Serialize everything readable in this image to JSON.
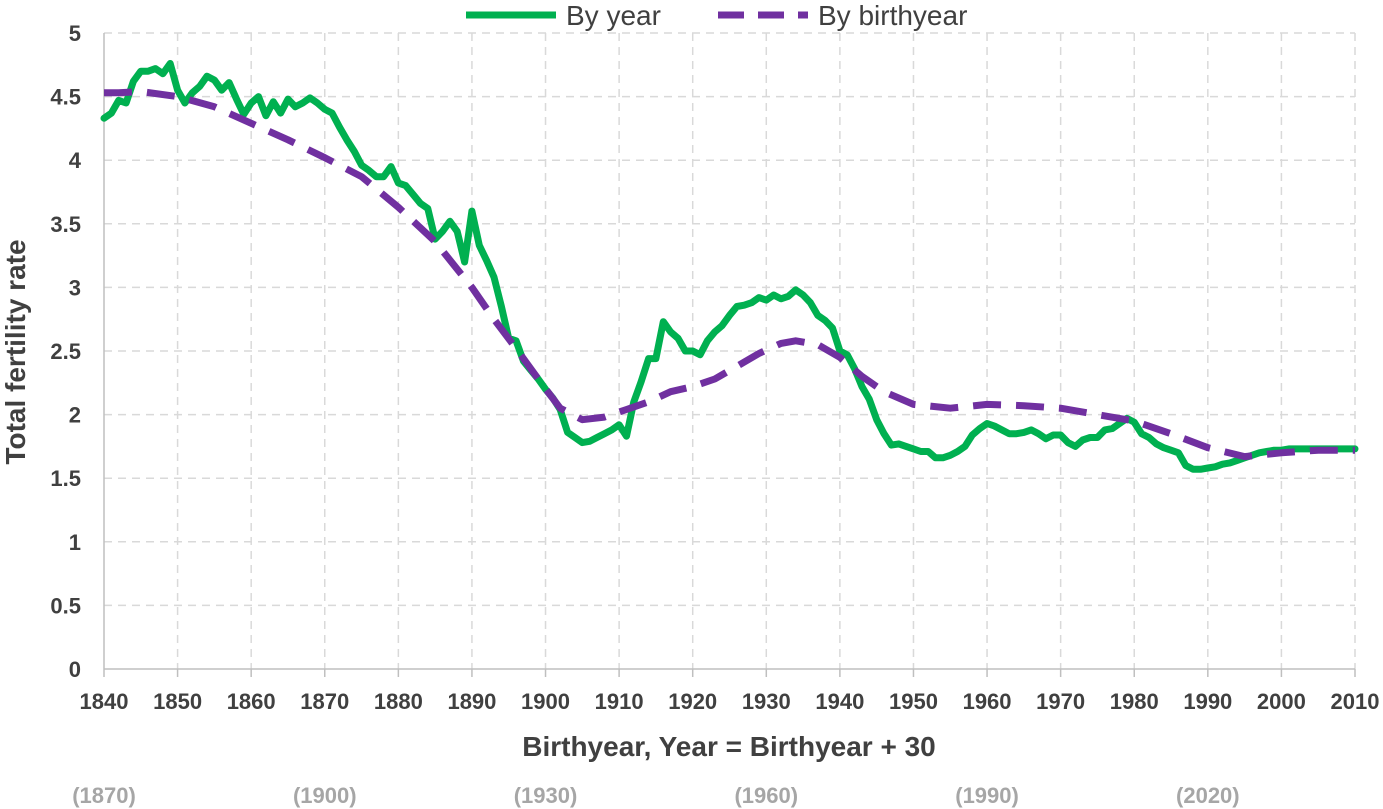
{
  "chart_data": {
    "type": "line",
    "xlabel": "Birthyear, Year = Birthyear + 30",
    "ylabel": "Total fertility rate",
    "xlim": [
      1840,
      2010
    ],
    "ylim": [
      0,
      5
    ],
    "x_ticks": [
      "1840",
      "1850",
      "1860",
      "1870",
      "1880",
      "1890",
      "1900",
      "1910",
      "1920",
      "1930",
      "1940",
      "1950",
      "1960",
      "1970",
      "1980",
      "1990",
      "2000",
      "2010"
    ],
    "y_ticks": [
      "0",
      "0.5",
      "1",
      "1.5",
      "2",
      "2.5",
      "3",
      "3.5",
      "4",
      "4.5",
      "5"
    ],
    "secondary_x_ticks": [
      {
        "x": 1840,
        "label": "(1870)"
      },
      {
        "x": 1870,
        "label": "(1900)"
      },
      {
        "x": 1900,
        "label": "(1930)"
      },
      {
        "x": 1930,
        "label": "(1960)"
      },
      {
        "x": 1960,
        "label": "(1990)"
      },
      {
        "x": 1990,
        "label": "(2020)"
      }
    ],
    "grid": "dashed vertical and horizontal",
    "legend": "top-center",
    "series": [
      {
        "name": "By year",
        "color": "#00b050",
        "style": "solid",
        "x": [
          1840,
          1841,
          1842,
          1843,
          1844,
          1845,
          1846,
          1847,
          1848,
          1849,
          1850,
          1851,
          1852,
          1853,
          1854,
          1855,
          1856,
          1857,
          1858,
          1859,
          1860,
          1861,
          1862,
          1863,
          1864,
          1865,
          1866,
          1867,
          1868,
          1869,
          1870,
          1871,
          1872,
          1873,
          1874,
          1875,
          1876,
          1877,
          1878,
          1879,
          1880,
          1881,
          1882,
          1883,
          1884,
          1885,
          1886,
          1887,
          1888,
          1889,
          1890,
          1891,
          1892,
          1893,
          1894,
          1895,
          1896,
          1897,
          1898,
          1899,
          1900,
          1901,
          1902,
          1903,
          1904,
          1905,
          1906,
          1907,
          1908,
          1909,
          1910,
          1911,
          1912,
          1913,
          1914,
          1915,
          1916,
          1917,
          1918,
          1919,
          1920,
          1921,
          1922,
          1923,
          1924,
          1925,
          1926,
          1927,
          1928,
          1929,
          1930,
          1931,
          1932,
          1933,
          1934,
          1935,
          1936,
          1937,
          1938,
          1939,
          1940,
          1941,
          1942,
          1943,
          1944,
          1945,
          1946,
          1947,
          1948,
          1949,
          1950,
          1951,
          1952,
          1953,
          1954,
          1955,
          1956,
          1957,
          1958,
          1959,
          1960,
          1961,
          1962,
          1963,
          1964,
          1965,
          1966,
          1967,
          1968,
          1969,
          1970,
          1971,
          1972,
          1973,
          1974,
          1975,
          1976,
          1977,
          1978,
          1979,
          1980,
          1981,
          1982,
          1983,
          1984,
          1985,
          1986,
          1987,
          1988,
          1989,
          1990,
          1991,
          1992,
          1993,
          1994,
          1995,
          1996,
          1997,
          1998,
          1999,
          2000,
          2001,
          2002,
          2003,
          2004,
          2005,
          2006,
          2007,
          2008,
          2009,
          2010
        ],
        "y": [
          4.33,
          4.37,
          4.47,
          4.45,
          4.62,
          4.7,
          4.7,
          4.72,
          4.68,
          4.76,
          4.55,
          4.45,
          4.53,
          4.58,
          4.66,
          4.63,
          4.55,
          4.61,
          4.48,
          4.36,
          4.45,
          4.5,
          4.35,
          4.46,
          4.37,
          4.48,
          4.42,
          4.45,
          4.49,
          4.45,
          4.4,
          4.37,
          4.26,
          4.16,
          4.07,
          3.96,
          3.92,
          3.87,
          3.87,
          3.95,
          3.82,
          3.8,
          3.73,
          3.66,
          3.62,
          3.38,
          3.44,
          3.52,
          3.44,
          3.2,
          3.6,
          3.33,
          3.21,
          3.08,
          2.85,
          2.6,
          2.58,
          2.42,
          2.35,
          2.28,
          2.2,
          2.13,
          2.04,
          1.86,
          1.82,
          1.78,
          1.79,
          1.82,
          1.85,
          1.88,
          1.92,
          1.83,
          2.1,
          2.26,
          2.44,
          2.44,
          2.73,
          2.65,
          2.6,
          2.5,
          2.5,
          2.47,
          2.58,
          2.65,
          2.7,
          2.78,
          2.85,
          2.86,
          2.88,
          2.92,
          2.9,
          2.94,
          2.91,
          2.93,
          2.98,
          2.94,
          2.88,
          2.78,
          2.74,
          2.68,
          2.5,
          2.47,
          2.36,
          2.22,
          2.12,
          1.96,
          1.85,
          1.76,
          1.77,
          1.75,
          1.73,
          1.71,
          1.71,
          1.66,
          1.66,
          1.68,
          1.71,
          1.75,
          1.84,
          1.89,
          1.93,
          1.91,
          1.88,
          1.85,
          1.85,
          1.86,
          1.88,
          1.85,
          1.81,
          1.84,
          1.84,
          1.78,
          1.75,
          1.8,
          1.82,
          1.82,
          1.88,
          1.89,
          1.93,
          1.97,
          1.94,
          1.85,
          1.82,
          1.77,
          1.74,
          1.72,
          1.7,
          1.6,
          1.57,
          1.57,
          1.58,
          1.59,
          1.61,
          1.62,
          1.64,
          1.66,
          1.68,
          1.7,
          1.71,
          1.72,
          1.72,
          1.73,
          1.73,
          1.73,
          1.73,
          1.73,
          1.73,
          1.73,
          1.73,
          1.73,
          1.73
        ]
      },
      {
        "name": "By birthyear",
        "color": "#7030a0",
        "style": "dashed",
        "x": [
          1840,
          1842,
          1845,
          1850,
          1855,
          1860,
          1865,
          1870,
          1875,
          1880,
          1885,
          1890,
          1893,
          1896,
          1899,
          1902,
          1905,
          1908,
          1911,
          1914,
          1917,
          1920,
          1923,
          1926,
          1929,
          1932,
          1934,
          1937,
          1940,
          1943,
          1946,
          1950,
          1955,
          1960,
          1965,
          1970,
          1975,
          1980,
          1985,
          1990,
          1995,
          2000,
          2005,
          2010
        ],
        "y": [
          4.53,
          4.53,
          4.54,
          4.5,
          4.42,
          4.29,
          4.16,
          4.02,
          3.87,
          3.63,
          3.36,
          3.0,
          2.75,
          2.52,
          2.28,
          2.05,
          1.96,
          1.98,
          2.04,
          2.1,
          2.18,
          2.22,
          2.28,
          2.38,
          2.48,
          2.56,
          2.58,
          2.55,
          2.45,
          2.3,
          2.18,
          2.08,
          2.05,
          2.08,
          2.07,
          2.05,
          2.0,
          1.95,
          1.85,
          1.74,
          1.67,
          1.7,
          1.72,
          1.72
        ]
      }
    ]
  }
}
